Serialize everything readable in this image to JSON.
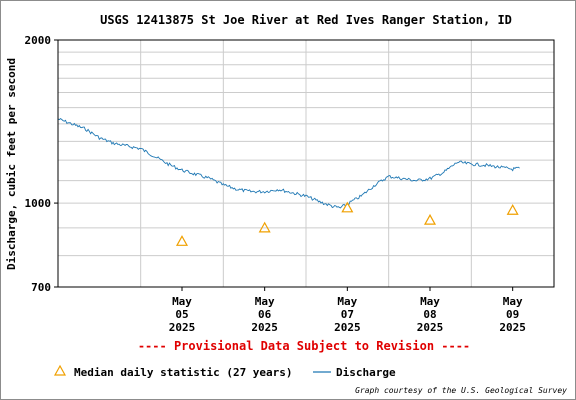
{
  "chart_data": {
    "type": "line",
    "title": "USGS 12413875 St Joe River at Red Ives Ranger Station, ID",
    "ylabel": "Discharge, cubic feet per second",
    "xlabel": "",
    "y_scale": "log",
    "ylim": [
      700,
      2000
    ],
    "y_ticks": [
      {
        "value": 2000,
        "label": "2000"
      },
      {
        "value": 1000,
        "label": "1000"
      },
      {
        "value": 700,
        "label": "700"
      }
    ],
    "xlim": [
      "2025-05-04",
      "2025-05-10"
    ],
    "x_ticks": [
      {
        "date": "2025-05-05",
        "month": "May",
        "day": "05",
        "year": "2025"
      },
      {
        "date": "2025-05-06",
        "month": "May",
        "day": "06",
        "year": "2025"
      },
      {
        "date": "2025-05-07",
        "month": "May",
        "day": "07",
        "year": "2025"
      },
      {
        "date": "2025-05-08",
        "month": "May",
        "day": "08",
        "year": "2025"
      },
      {
        "date": "2025-05-09",
        "month": "May",
        "day": "09",
        "year": "2025"
      }
    ],
    "grid": true,
    "series": [
      {
        "name": "Discharge",
        "kind": "line",
        "color": "#1f78b4",
        "points": [
          {
            "x": "2025-05-04 00:00",
            "y": 1430
          },
          {
            "x": "2025-05-04 04:00",
            "y": 1400
          },
          {
            "x": "2025-05-04 08:00",
            "y": 1370
          },
          {
            "x": "2025-05-04 12:00",
            "y": 1320
          },
          {
            "x": "2025-05-04 16:00",
            "y": 1290
          },
          {
            "x": "2025-05-05 00:00",
            "y": 1260
          },
          {
            "x": "2025-05-05 04:00",
            "y": 1220
          },
          {
            "x": "2025-05-05 08:00",
            "y": 1180
          },
          {
            "x": "2025-05-05 12:00",
            "y": 1150
          },
          {
            "x": "2025-05-05 16:00",
            "y": 1130
          },
          {
            "x": "2025-05-05 20:00",
            "y": 1110
          },
          {
            "x": "2025-05-06 00:00",
            "y": 1080
          },
          {
            "x": "2025-05-06 04:00",
            "y": 1060
          },
          {
            "x": "2025-05-06 08:00",
            "y": 1050
          },
          {
            "x": "2025-05-06 12:00",
            "y": 1050
          },
          {
            "x": "2025-05-06 16:00",
            "y": 1060
          },
          {
            "x": "2025-05-06 20:00",
            "y": 1045
          },
          {
            "x": "2025-05-07 00:00",
            "y": 1030
          },
          {
            "x": "2025-05-07 04:00",
            "y": 1005
          },
          {
            "x": "2025-05-07 08:00",
            "y": 985
          },
          {
            "x": "2025-05-07 10:00",
            "y": 980
          },
          {
            "x": "2025-05-07 16:00",
            "y": 1030
          },
          {
            "x": "2025-05-07 20:00",
            "y": 1080
          },
          {
            "x": "2025-05-08 00:00",
            "y": 1120
          },
          {
            "x": "2025-05-08 04:00",
            "y": 1110
          },
          {
            "x": "2025-05-08 08:00",
            "y": 1100
          },
          {
            "x": "2025-05-08 12:00",
            "y": 1110
          },
          {
            "x": "2025-05-08 16:00",
            "y": 1140
          },
          {
            "x": "2025-05-08 20:00",
            "y": 1190
          },
          {
            "x": "2025-05-09 00:00",
            "y": 1180
          },
          {
            "x": "2025-05-09 04:00",
            "y": 1175
          },
          {
            "x": "2025-05-09 08:00",
            "y": 1165
          },
          {
            "x": "2025-05-09 12:00",
            "y": 1155
          },
          {
            "x": "2025-05-09 14:00",
            "y": 1160
          }
        ]
      },
      {
        "name": "Median daily statistic (27 years)",
        "kind": "triangle",
        "color": "#f0a000",
        "points": [
          {
            "x": "2025-05-05 12:00",
            "y": 850
          },
          {
            "x": "2025-05-06 12:00",
            "y": 900
          },
          {
            "x": "2025-05-07 12:00",
            "y": 980
          },
          {
            "x": "2025-05-08 12:00",
            "y": 930
          },
          {
            "x": "2025-05-09 12:00",
            "y": 970
          }
        ]
      }
    ],
    "legend": {
      "placement": "bottom-left",
      "entries": [
        {
          "label": "Median daily statistic (27 years)",
          "symbol": "triangle"
        },
        {
          "label": "Discharge",
          "symbol": "line"
        }
      ]
    }
  },
  "notices": {
    "provisional": "---- Provisional Data Subject to Revision ----",
    "credit": "Graph courtesy of the U.S. Geological Survey"
  }
}
